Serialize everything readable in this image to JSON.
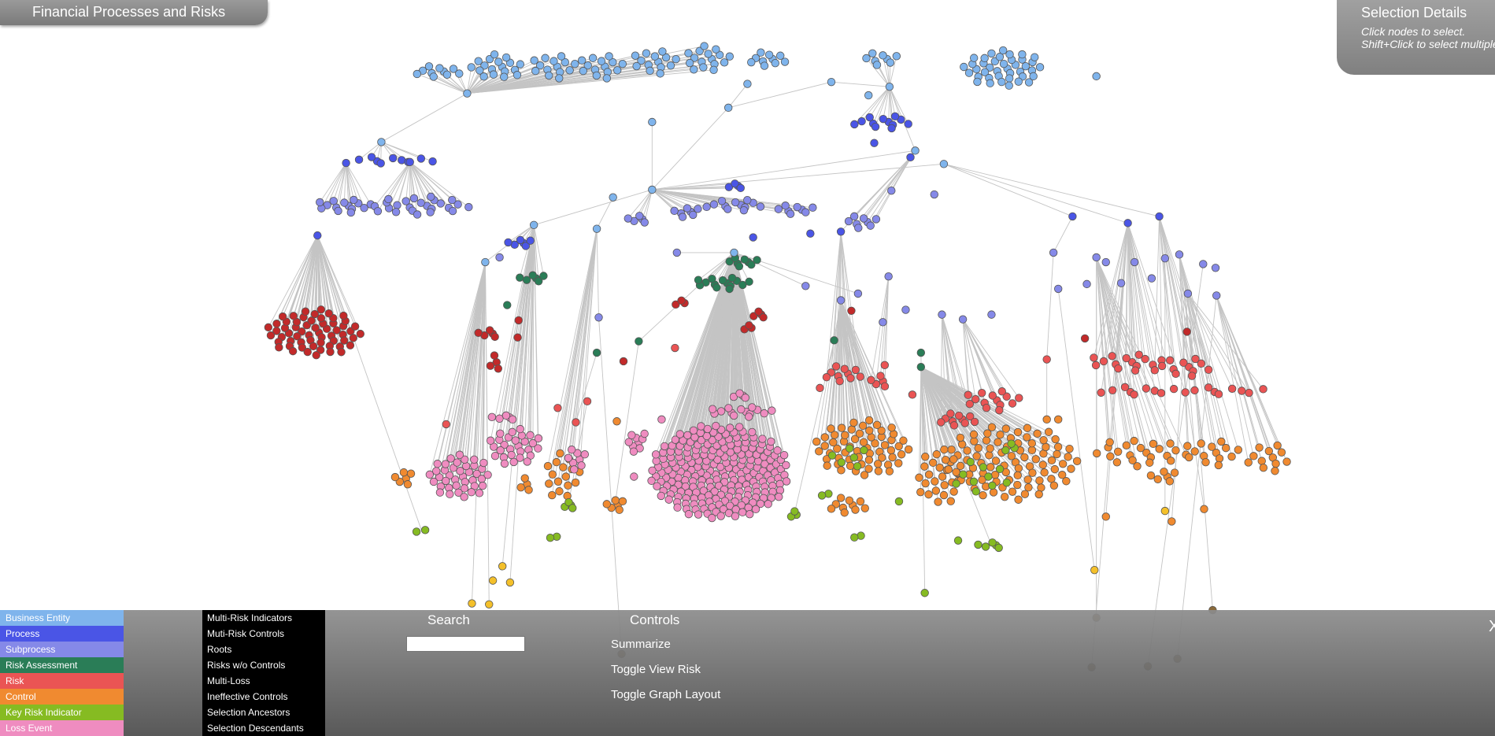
{
  "header": {
    "title": "Financial Processes and Risks"
  },
  "selection_details": {
    "title": "Selection Details",
    "hint_click": "Click nodes to select.",
    "hint_shift": "Shift+Click to select multiple"
  },
  "legend": {
    "node_types": [
      {
        "label": "Business Entity",
        "color": "#7fb4ec"
      },
      {
        "label": "Process",
        "color": "#4a55e6"
      },
      {
        "label": "Subprocess",
        "color": "#8589e8"
      },
      {
        "label": "Risk Assessment",
        "color": "#2a7d57"
      },
      {
        "label": "Risk",
        "color": "#ea5454"
      },
      {
        "label": "Control",
        "color": "#f08a30"
      },
      {
        "label": "Key Risk Indicator",
        "color": "#86bb22"
      },
      {
        "label": "Loss Event",
        "color": "#ef8cc0"
      }
    ],
    "filters": [
      "Multi-Risk Indicators",
      "Muti-Risk Controls",
      "Roots",
      "Risks w/o Controls",
      "Multi-Loss",
      "Ineffective Controls",
      "Selection Ancestors",
      "Selection Descendants"
    ]
  },
  "search": {
    "label": "Search"
  },
  "controls": {
    "title": "Controls",
    "buttons": [
      "Summarize",
      "Toggle View Risk",
      "Toggle Graph Layout"
    ]
  },
  "close": "X"
}
